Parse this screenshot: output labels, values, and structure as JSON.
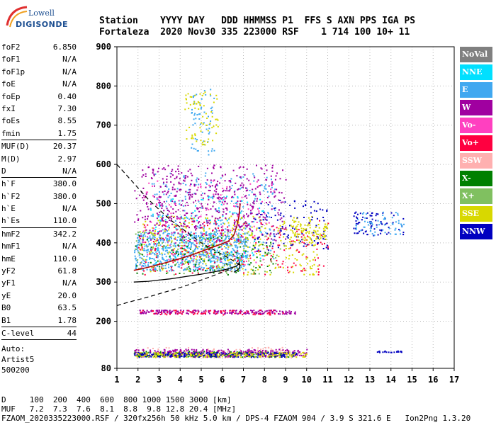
{
  "logo": {
    "line1": "Lowell",
    "line2": "DIGISONDE"
  },
  "header": {
    "line1": "Station    YYYY DAY   DDD HHMMSS P1  FFS S AXN PPS IGA PS",
    "line2": "Fortaleza  2020 Nov30 335 223000 RSF    1 714 100 10+ 11"
  },
  "params": [
    {
      "label": "foF2",
      "value": "6.850"
    },
    {
      "label": "foF1",
      "value": "N/A"
    },
    {
      "label": "foF1p",
      "value": "N/A"
    },
    {
      "label": "foE",
      "value": "N/A"
    },
    {
      "label": "foEp",
      "value": "0.40"
    },
    {
      "label": "fxI",
      "value": "7.30"
    },
    {
      "label": "foEs",
      "value": "8.55"
    },
    {
      "label": "fmin",
      "value": "1.75",
      "sep": true
    },
    {
      "label": "MUF(D)",
      "value": "20.37"
    },
    {
      "label": "M(D)",
      "value": "2.97"
    },
    {
      "label": "D",
      "value": "N/A",
      "sep": true
    },
    {
      "label": "h`F",
      "value": "380.0"
    },
    {
      "label": "h`F2",
      "value": "380.0"
    },
    {
      "label": "h`E",
      "value": "N/A"
    },
    {
      "label": "h`Es",
      "value": "110.0",
      "sep": true
    },
    {
      "label": "hmF2",
      "value": "342.2"
    },
    {
      "label": "hmF1",
      "value": "N/A"
    },
    {
      "label": "hmE",
      "value": "110.0"
    },
    {
      "label": "yF2",
      "value": "61.8"
    },
    {
      "label": "yF1",
      "value": "N/A"
    },
    {
      "label": "yE",
      "value": "20.0"
    },
    {
      "label": "B0",
      "value": "63.5"
    },
    {
      "label": "B1",
      "value": "1.78",
      "sep": true
    },
    {
      "label": "C-level",
      "value": "44",
      "sep": true
    }
  ],
  "auto": {
    "line1": "Auto:",
    "line2": "Artist5",
    "line3": "500200"
  },
  "legend": [
    {
      "label": "NoVal",
      "bg": "#808080",
      "fg": "#ffffff"
    },
    {
      "label": "NNE",
      "bg": "#00e0ff",
      "fg": "#ffffff"
    },
    {
      "label": "E",
      "bg": "#40a8f0",
      "fg": "#ffffff"
    },
    {
      "label": "W",
      "bg": "#a000a0",
      "fg": "#ffffff"
    },
    {
      "label": "Vo-",
      "bg": "#ff40c0",
      "fg": "#ffffff"
    },
    {
      "label": "Vo+",
      "bg": "#ff0040",
      "fg": "#ffffff"
    },
    {
      "label": "SSW",
      "bg": "#ffb0b0",
      "fg": "#ffffff"
    },
    {
      "label": "X-",
      "bg": "#008000",
      "fg": "#ffffff"
    },
    {
      "label": "X+",
      "bg": "#80c060",
      "fg": "#ffffff"
    },
    {
      "label": "SSE",
      "bg": "#d8d800",
      "fg": "#ffffff"
    },
    {
      "label": "NNW",
      "bg": "#0000c0",
      "fg": "#ffffff"
    }
  ],
  "footer": {
    "line1": "D     100  200  400  600  800 1000 1500 3000 [km]",
    "line2": "MUF   7.2  7.3  7.6  8.1  8.8  9.8 12.8 20.4 [MHz]",
    "line3": "FZAOM_2020335223000.RSF / 320fx256h 50 kHz 5.0 km / DPS-4 FZAOM 904 / 3.9 S 321.6 E   Ion2Png 1.3.20"
  },
  "chart_data": {
    "type": "scatter",
    "xlim": [
      1,
      17
    ],
    "ylim": [
      80,
      900
    ],
    "x_ticks": [
      1,
      2,
      3,
      4,
      5,
      6,
      7,
      8,
      9,
      10,
      11,
      12,
      13,
      14,
      15,
      16,
      17
    ],
    "y_ticks": [
      80,
      200,
      300,
      400,
      500,
      600,
      700,
      800,
      900
    ],
    "grid": true,
    "legend_position": "right",
    "echo_clusters": [
      {
        "mode": "E",
        "x": [
          1.8,
          7.2
        ],
        "y": [
          330,
          430
        ],
        "n": 700
      },
      {
        "mode": "E",
        "x": [
          2.5,
          8.5
        ],
        "y": [
          360,
          580
        ],
        "n": 260
      },
      {
        "mode": "E",
        "x": [
          4.5,
          5.6
        ],
        "y": [
          620,
          800
        ],
        "n": 60
      },
      {
        "mode": "NNE",
        "x": [
          2.5,
          8.0
        ],
        "y": [
          350,
          520
        ],
        "n": 120
      },
      {
        "mode": "SSE",
        "x": [
          2.0,
          10.5
        ],
        "y": [
          320,
          470
        ],
        "n": 320
      },
      {
        "mode": "SSE",
        "x": [
          4.2,
          5.8
        ],
        "y": [
          650,
          790
        ],
        "n": 70
      },
      {
        "mode": "W",
        "x": [
          1.8,
          9.0
        ],
        "y": [
          400,
          600
        ],
        "n": 380
      },
      {
        "mode": "W",
        "x": [
          3.0,
          7.5
        ],
        "y": [
          440,
          560
        ],
        "n": 150
      },
      {
        "mode": "Vo+",
        "x": [
          2.0,
          11.0
        ],
        "y": [
          320,
          460
        ],
        "n": 220
      },
      {
        "mode": "Vo-",
        "x": [
          2.0,
          8.5
        ],
        "y": [
          340,
          560
        ],
        "n": 120
      },
      {
        "mode": "X-",
        "x": [
          1.8,
          8.5
        ],
        "y": [
          320,
          420
        ],
        "n": 110
      },
      {
        "mode": "X+",
        "x": [
          1.8,
          9.0
        ],
        "y": [
          320,
          430
        ],
        "n": 110
      },
      {
        "mode": "NNW",
        "x": [
          7.5,
          11.0
        ],
        "y": [
          380,
          510
        ],
        "n": 110
      },
      {
        "mode": "NNW",
        "x": [
          12.2,
          14.6
        ],
        "y": [
          420,
          480
        ],
        "n": 70
      },
      {
        "mode": "E",
        "x": [
          12.3,
          14.6
        ],
        "y": [
          420,
          480
        ],
        "n": 60
      },
      {
        "mode": "SSE",
        "x": [
          9.0,
          11.0
        ],
        "y": [
          400,
          450
        ],
        "n": 80
      },
      {
        "mode": "W",
        "x": [
          2.0,
          9.5
        ],
        "y": [
          220,
          230
        ],
        "n": 200
      },
      {
        "mode": "Vo+",
        "x": [
          2.0,
          9.0
        ],
        "y": [
          218,
          230
        ],
        "n": 70
      },
      {
        "mode": "X-",
        "x": [
          1.8,
          9.5
        ],
        "y": [
          110,
          125
        ],
        "n": 250
      },
      {
        "mode": "SSW",
        "x": [
          1.8,
          9.5
        ],
        "y": [
          108,
          135
        ],
        "n": 140
      },
      {
        "mode": "W",
        "x": [
          1.8,
          10.0
        ],
        "y": [
          110,
          130
        ],
        "n": 240
      },
      {
        "mode": "NNW",
        "x": [
          1.8,
          9.5
        ],
        "y": [
          110,
          122
        ],
        "n": 200
      },
      {
        "mode": "SSE",
        "x": [
          1.8,
          10.0
        ],
        "y": [
          110,
          122
        ],
        "n": 150
      },
      {
        "mode": "NNW",
        "x": [
          13.3,
          14.5
        ],
        "y": [
          122,
          126
        ],
        "n": 20
      }
    ],
    "trace_virtual_height": {
      "x": [
        1.8,
        2.0,
        2.5,
        3.0,
        3.5,
        4.0,
        4.5,
        5.0,
        5.5,
        6.0,
        6.3,
        6.55,
        6.7,
        6.8,
        6.85
      ],
      "y": [
        330,
        332,
        338,
        345,
        352,
        360,
        368,
        378,
        388,
        398,
        405,
        420,
        445,
        470,
        500
      ]
    },
    "profile_true_height": {
      "x": [
        1.8,
        2.5,
        3.0,
        3.5,
        4.0,
        4.5,
        5.0,
        5.5,
        6.0,
        6.3,
        6.5,
        6.65,
        6.75,
        6.8,
        6.85,
        6.8,
        6.7,
        6.55
      ],
      "y": [
        300,
        302,
        305,
        308,
        312,
        316,
        320,
        325,
        330,
        334,
        338,
        340,
        345,
        350,
        342,
        335,
        330,
        325
      ]
    },
    "profile_dashed_lower": {
      "x": [
        1.0,
        1.5,
        2.0,
        2.5,
        3.0,
        3.5,
        4.0,
        4.5,
        5.0,
        5.5,
        6.0,
        6.5
      ],
      "y": [
        240,
        248,
        255,
        262,
        270,
        278,
        286,
        295,
        305,
        315,
        325,
        335
      ]
    },
    "profile_dashed_upper": {
      "x": [
        1.0,
        1.5,
        2.0,
        2.5,
        3.0,
        3.5,
        4.0,
        4.5,
        5.0,
        5.5,
        6.0,
        6.5,
        6.85
      ],
      "y": [
        600,
        570,
        540,
        510,
        485,
        460,
        440,
        420,
        400,
        385,
        370,
        355,
        342
      ]
    }
  }
}
